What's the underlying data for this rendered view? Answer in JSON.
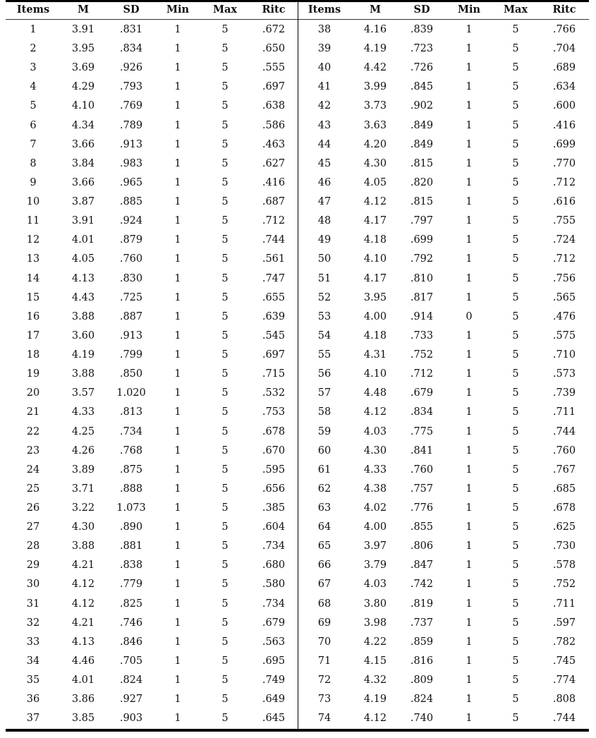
{
  "table": {
    "headers": [
      "Items",
      "M",
      "SD",
      "Min",
      "Max",
      "Ritc"
    ],
    "left": [
      [
        "1",
        "3.91",
        ".831",
        "1",
        "5",
        ".672"
      ],
      [
        "2",
        "3.95",
        ".834",
        "1",
        "5",
        ".650"
      ],
      [
        "3",
        "3.69",
        ".926",
        "1",
        "5",
        ".555"
      ],
      [
        "4",
        "4.29",
        ".793",
        "1",
        "5",
        ".697"
      ],
      [
        "5",
        "4.10",
        ".769",
        "1",
        "5",
        ".638"
      ],
      [
        "6",
        "4.34",
        ".789",
        "1",
        "5",
        ".586"
      ],
      [
        "7",
        "3.66",
        ".913",
        "1",
        "5",
        ".463"
      ],
      [
        "8",
        "3.84",
        ".983",
        "1",
        "5",
        ".627"
      ],
      [
        "9",
        "3.66",
        ".965",
        "1",
        "5",
        ".416"
      ],
      [
        "10",
        "3.87",
        ".885",
        "1",
        "5",
        ".687"
      ],
      [
        "11",
        "3.91",
        ".924",
        "1",
        "5",
        ".712"
      ],
      [
        "12",
        "4.01",
        ".879",
        "1",
        "5",
        ".744"
      ],
      [
        "13",
        "4.05",
        ".760",
        "1",
        "5",
        ".561"
      ],
      [
        "14",
        "4.13",
        ".830",
        "1",
        "5",
        ".747"
      ],
      [
        "15",
        "4.43",
        ".725",
        "1",
        "5",
        ".655"
      ],
      [
        "16",
        "3.88",
        ".887",
        "1",
        "5",
        ".639"
      ],
      [
        "17",
        "3.60",
        ".913",
        "1",
        "5",
        ".545"
      ],
      [
        "18",
        "4.19",
        ".799",
        "1",
        "5",
        ".697"
      ],
      [
        "19",
        "3.88",
        ".850",
        "1",
        "5",
        ".715"
      ],
      [
        "20",
        "3.57",
        "1.020",
        "1",
        "5",
        ".532"
      ],
      [
        "21",
        "4.33",
        ".813",
        "1",
        "5",
        ".753"
      ],
      [
        "22",
        "4.25",
        ".734",
        "1",
        "5",
        ".678"
      ],
      [
        "23",
        "4.26",
        ".768",
        "1",
        "5",
        ".670"
      ],
      [
        "24",
        "3.89",
        ".875",
        "1",
        "5",
        ".595"
      ],
      [
        "25",
        "3.71",
        ".888",
        "1",
        "5",
        ".656"
      ],
      [
        "26",
        "3.22",
        "1.073",
        "1",
        "5",
        ".385"
      ],
      [
        "27",
        "4.30",
        ".890",
        "1",
        "5",
        ".604"
      ],
      [
        "28",
        "3.88",
        ".881",
        "1",
        "5",
        ".734"
      ],
      [
        "29",
        "4.21",
        ".838",
        "1",
        "5",
        ".680"
      ],
      [
        "30",
        "4.12",
        ".779",
        "1",
        "5",
        ".580"
      ],
      [
        "31",
        "4.12",
        ".825",
        "1",
        "5",
        ".734"
      ],
      [
        "32",
        "4.21",
        ".746",
        "1",
        "5",
        ".679"
      ],
      [
        "33",
        "4.13",
        ".846",
        "1",
        "5",
        ".563"
      ],
      [
        "34",
        "4.46",
        ".705",
        "1",
        "5",
        ".695"
      ],
      [
        "35",
        "4.01",
        ".824",
        "1",
        "5",
        ".749"
      ],
      [
        "36",
        "3.86",
        ".927",
        "1",
        "5",
        ".649"
      ],
      [
        "37",
        "3.85",
        ".903",
        "1",
        "5",
        ".645"
      ]
    ],
    "right": [
      [
        "38",
        "4.16",
        ".839",
        "1",
        "5",
        ".766"
      ],
      [
        "39",
        "4.19",
        ".723",
        "1",
        "5",
        ".704"
      ],
      [
        "40",
        "4.42",
        ".726",
        "1",
        "5",
        ".689"
      ],
      [
        "41",
        "3.99",
        ".845",
        "1",
        "5",
        ".634"
      ],
      [
        "42",
        "3.73",
        ".902",
        "1",
        "5",
        ".600"
      ],
      [
        "43",
        "3.63",
        ".849",
        "1",
        "5",
        ".416"
      ],
      [
        "44",
        "4.20",
        ".849",
        "1",
        "5",
        ".699"
      ],
      [
        "45",
        "4.30",
        ".815",
        "1",
        "5",
        ".770"
      ],
      [
        "46",
        "4.05",
        ".820",
        "1",
        "5",
        ".712"
      ],
      [
        "47",
        "4.12",
        ".815",
        "1",
        "5",
        ".616"
      ],
      [
        "48",
        "4.17",
        ".797",
        "1",
        "5",
        ".755"
      ],
      [
        "49",
        "4.18",
        ".699",
        "1",
        "5",
        ".724"
      ],
      [
        "50",
        "4.10",
        ".792",
        "1",
        "5",
        ".712"
      ],
      [
        "51",
        "4.17",
        ".810",
        "1",
        "5",
        ".756"
      ],
      [
        "52",
        "3.95",
        ".817",
        "1",
        "5",
        ".565"
      ],
      [
        "53",
        "4.00",
        ".914",
        "0",
        "5",
        ".476"
      ],
      [
        "54",
        "4.18",
        ".733",
        "1",
        "5",
        ".575"
      ],
      [
        "55",
        "4.31",
        ".752",
        "1",
        "5",
        ".710"
      ],
      [
        "56",
        "4.10",
        ".712",
        "1",
        "5",
        ".573"
      ],
      [
        "57",
        "4.48",
        ".679",
        "1",
        "5",
        ".739"
      ],
      [
        "58",
        "4.12",
        ".834",
        "1",
        "5",
        ".711"
      ],
      [
        "59",
        "4.03",
        ".775",
        "1",
        "5",
        ".744"
      ],
      [
        "60",
        "4.30",
        ".841",
        "1",
        "5",
        ".760"
      ],
      [
        "61",
        "4.33",
        ".760",
        "1",
        "5",
        ".767"
      ],
      [
        "62",
        "4.38",
        ".757",
        "1",
        "5",
        ".685"
      ],
      [
        "63",
        "4.02",
        ".776",
        "1",
        "5",
        ".678"
      ],
      [
        "64",
        "4.00",
        ".855",
        "1",
        "5",
        ".625"
      ],
      [
        "65",
        "3.97",
        ".806",
        "1",
        "5",
        ".730"
      ],
      [
        "66",
        "3.79",
        ".847",
        "1",
        "5",
        ".578"
      ],
      [
        "67",
        "4.03",
        ".742",
        "1",
        "5",
        ".752"
      ],
      [
        "68",
        "3.80",
        ".819",
        "1",
        "5",
        ".711"
      ],
      [
        "69",
        "3.98",
        ".737",
        "1",
        "5",
        ".597"
      ],
      [
        "70",
        "4.22",
        ".859",
        "1",
        "5",
        ".782"
      ],
      [
        "71",
        "4.15",
        ".816",
        "1",
        "5",
        ".745"
      ],
      [
        "72",
        "4.32",
        ".809",
        "1",
        "5",
        ".774"
      ],
      [
        "73",
        "4.19",
        ".824",
        "1",
        "5",
        ".808"
      ],
      [
        "74",
        "4.12",
        ".740",
        "1",
        "5",
        ".744"
      ]
    ]
  }
}
